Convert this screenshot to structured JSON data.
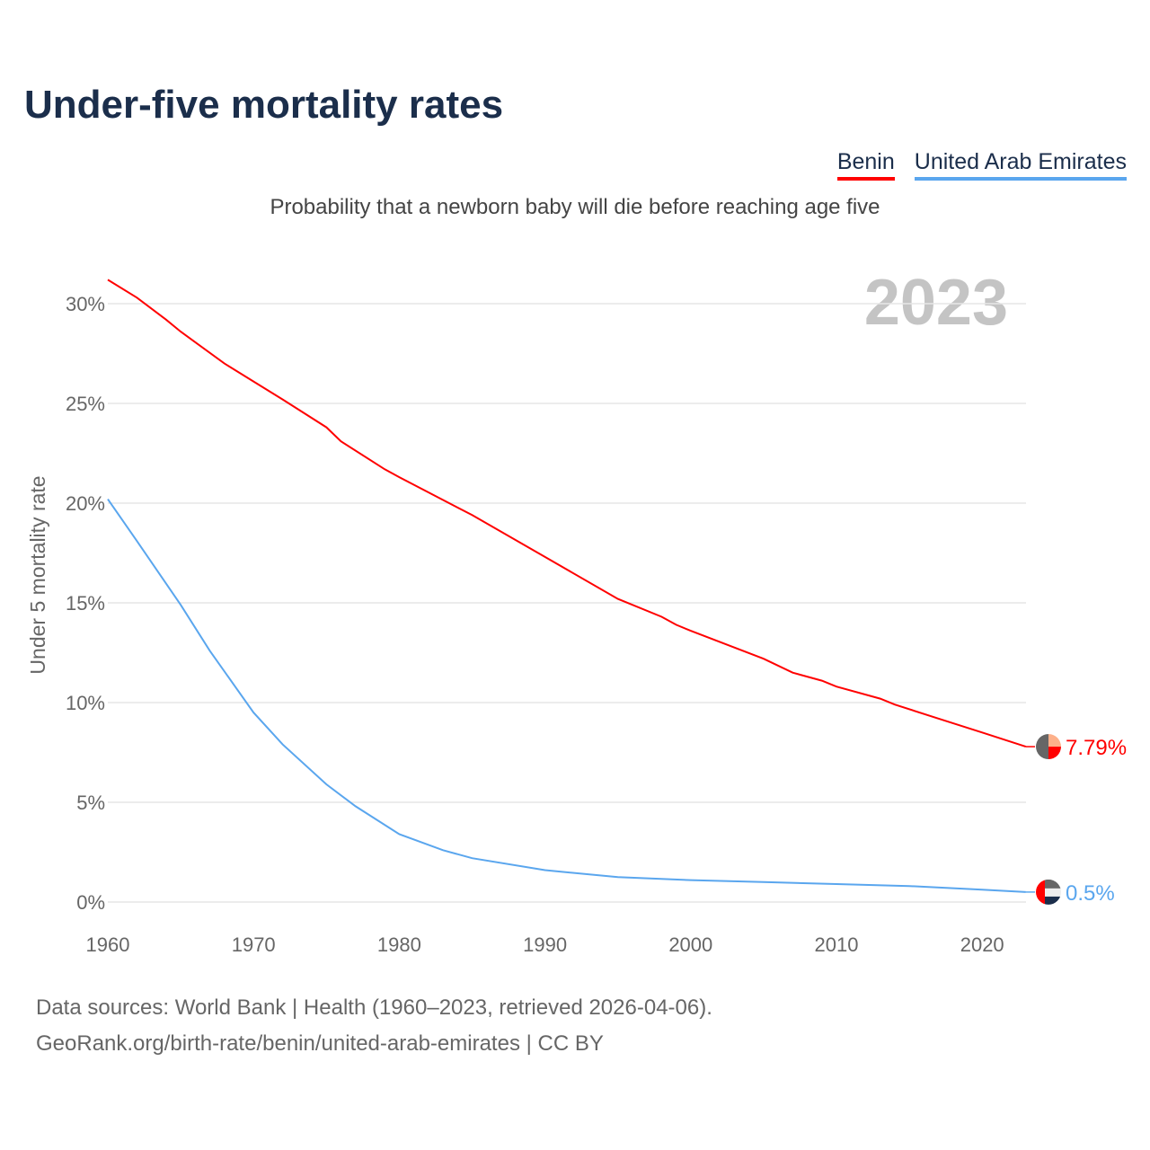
{
  "title": "Under-five mortality rates",
  "subtitle": "Probability that a newborn baby will die before reaching age five",
  "footer": {
    "line1": "Data sources: World Bank | Health (1960–2023, retrieved 2026-04-06).",
    "line2": "GeoRank.org/birth-rate/benin/united-arab-emirates | CC BY"
  },
  "chart_data": {
    "type": "line",
    "title": "Under-five mortality rates",
    "ylabel": "Under 5 mortality rate",
    "xlabel": "",
    "year_label": "2023",
    "xlim": [
      1960,
      2023
    ],
    "ylim": [
      0,
      30
    ],
    "xticks": [
      {
        "v": 1960,
        "label": "1960"
      },
      {
        "v": 1970,
        "label": "1970"
      },
      {
        "v": 1980,
        "label": "1980"
      },
      {
        "v": 1990,
        "label": "1990"
      },
      {
        "v": 2000,
        "label": "2000"
      },
      {
        "v": 2010,
        "label": "2010"
      },
      {
        "v": 2020,
        "label": "2020"
      }
    ],
    "yticks": [
      {
        "v": 0,
        "label": "0%"
      },
      {
        "v": 5,
        "label": "5%"
      },
      {
        "v": 10,
        "label": "10%"
      },
      {
        "v": 15,
        "label": "15%"
      },
      {
        "v": 20,
        "label": "20%"
      },
      {
        "v": 25,
        "label": "25%"
      },
      {
        "v": 30,
        "label": "30%"
      }
    ],
    "grid": true,
    "legend_position": "top-right",
    "series": [
      {
        "name": "Benin",
        "color": "#ff0000",
        "end_label": "7.79%",
        "x": [
          1960,
          1962,
          1964,
          1965,
          1968,
          1970,
          1972,
          1975,
          1976,
          1979,
          1980,
          1985,
          1990,
          1995,
          1998,
          1999,
          2000,
          2005,
          2007,
          2009,
          2010,
          2013,
          2014,
          2017,
          2020,
          2023
        ],
        "y": [
          31.2,
          30.3,
          29.2,
          28.6,
          27.0,
          26.1,
          25.2,
          23.8,
          23.1,
          21.7,
          21.3,
          19.4,
          17.3,
          15.2,
          14.3,
          13.9,
          13.6,
          12.2,
          11.5,
          11.1,
          10.8,
          10.2,
          9.9,
          9.2,
          8.5,
          7.79
        ]
      },
      {
        "name": "United Arab Emirates",
        "color": "#5aa6ee",
        "end_label": "0.5%",
        "x": [
          1960,
          1962,
          1965,
          1967,
          1970,
          1972,
          1975,
          1977,
          1980,
          1983,
          1985,
          1990,
          1995,
          2000,
          2005,
          2010,
          2015,
          2020,
          2023
        ],
        "y": [
          20.2,
          18.1,
          14.9,
          12.6,
          9.5,
          7.9,
          5.9,
          4.8,
          3.4,
          2.6,
          2.2,
          1.6,
          1.25,
          1.1,
          1.0,
          0.9,
          0.8,
          0.62,
          0.5
        ]
      }
    ]
  }
}
